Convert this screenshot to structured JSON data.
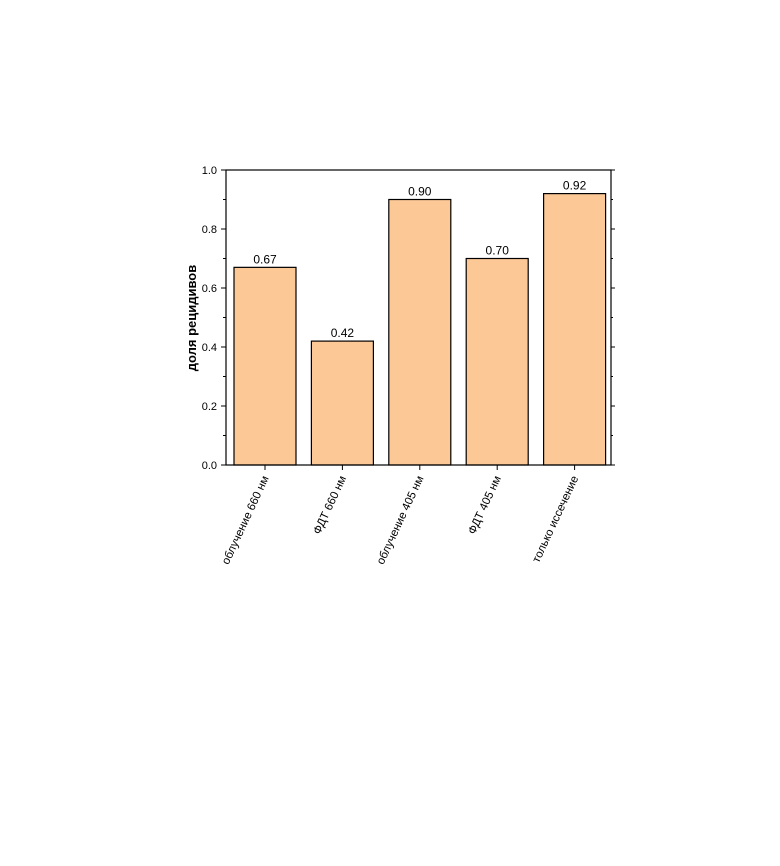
{
  "chart_data": {
    "type": "bar",
    "title": "",
    "xlabel": "",
    "ylabel": "доля рецидивов",
    "categories": [
      "облучение 660 нм",
      "ФДТ 660 нм",
      "облучение 405 нм",
      "ФДТ 405 нм",
      "только иссечение"
    ],
    "values": [
      0.67,
      0.42,
      0.9,
      0.7,
      0.92
    ],
    "data_labels": [
      "0.67",
      "0.42",
      "0.90",
      "0.70",
      "0.92"
    ],
    "ylim": [
      0.0,
      1.0
    ],
    "yticks": [
      "0.0",
      "0.2",
      "0.4",
      "0.6",
      "0.8",
      "1.0"
    ],
    "grid": false,
    "legend": "none",
    "colors": {
      "bar_fill": "#FCC896",
      "bar_stroke": "#000000",
      "axis": "#000000"
    }
  }
}
